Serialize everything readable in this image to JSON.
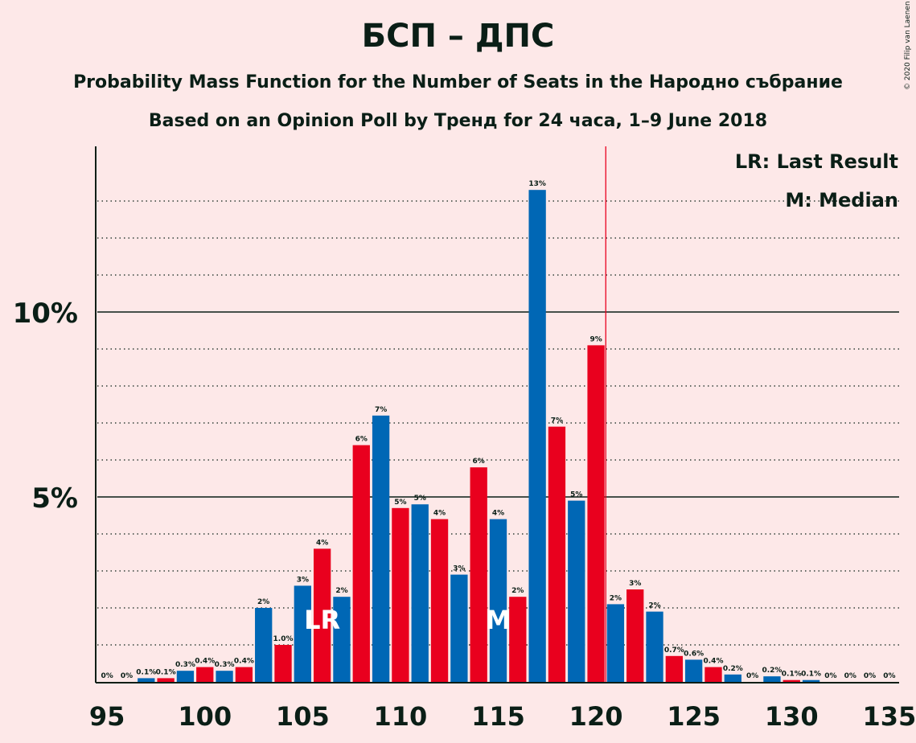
{
  "title": "БСП – ДПС",
  "subtitle": "Probability Mass Function for the Number of Seats in the Народно събрание",
  "subtitle2": "Based on an Opinion Poll by Тренд for 24 часа, 1–9 June 2018",
  "copyright": "© 2020 Filip van Laenen",
  "legend": {
    "last_result": "LR: Last Result",
    "median": "M: Median"
  },
  "colors": {
    "blue": "#0067B5",
    "red": "#E9001E",
    "background": "#FDE8E8",
    "axis": "#0A1E16"
  },
  "chart_data": {
    "type": "bar",
    "title": "БСП – ДПС",
    "xlabel": "",
    "ylabel": "",
    "x_ticks": [
      95,
      100,
      105,
      110,
      115,
      120,
      125,
      130,
      135
    ],
    "y_ticks": [
      "5%",
      "10%"
    ],
    "ylim": [
      0,
      14.5
    ],
    "majority_line": 120.5,
    "last_result": 106,
    "median": 115,
    "bars": [
      {
        "x": 95,
        "value": 0,
        "label": "0%"
      },
      {
        "x": 96,
        "value": 0,
        "label": "0%"
      },
      {
        "x": 97,
        "value": 0.1,
        "label": "0.1%"
      },
      {
        "x": 98,
        "value": 0.1,
        "label": "0.1%"
      },
      {
        "x": 99,
        "value": 0.3,
        "label": "0.3%"
      },
      {
        "x": 100,
        "value": 0.4,
        "label": "0.4%"
      },
      {
        "x": 101,
        "value": 0.3,
        "label": "0.3%"
      },
      {
        "x": 102,
        "value": 0.4,
        "label": "0.4%"
      },
      {
        "x": 103,
        "value": 2.0,
        "label": "2%"
      },
      {
        "x": 104,
        "value": 1.0,
        "label": "1.0%"
      },
      {
        "x": 105,
        "value": 2.6,
        "label": "3%"
      },
      {
        "x": 106,
        "value": 3.6,
        "label": "4%"
      },
      {
        "x": 107,
        "value": 2.3,
        "label": "2%"
      },
      {
        "x": 108,
        "value": 6.4,
        "label": "6%"
      },
      {
        "x": 109,
        "value": 7.2,
        "label": "7%"
      },
      {
        "x": 110,
        "value": 4.7,
        "label": "5%"
      },
      {
        "x": 111,
        "value": 4.8,
        "label": "5%"
      },
      {
        "x": 112,
        "value": 4.4,
        "label": "4%"
      },
      {
        "x": 113,
        "value": 2.9,
        "label": "3%"
      },
      {
        "x": 114,
        "value": 5.8,
        "label": "6%"
      },
      {
        "x": 115,
        "value": 4.4,
        "label": "4%"
      },
      {
        "x": 116,
        "value": 2.3,
        "label": "2%"
      },
      {
        "x": 117,
        "value": 13.3,
        "label": "13%"
      },
      {
        "x": 118,
        "value": 6.9,
        "label": "7%"
      },
      {
        "x": 119,
        "value": 4.9,
        "label": "5%"
      },
      {
        "x": 120,
        "value": 9.1,
        "label": "9%"
      },
      {
        "x": 121,
        "value": 2.1,
        "label": "2%"
      },
      {
        "x": 122,
        "value": 2.5,
        "label": "3%"
      },
      {
        "x": 123,
        "value": 1.9,
        "label": "2%"
      },
      {
        "x": 124,
        "value": 0.7,
        "label": "0.7%"
      },
      {
        "x": 125,
        "value": 0.6,
        "label": "0.6%"
      },
      {
        "x": 126,
        "value": 0.4,
        "label": "0.4%"
      },
      {
        "x": 127,
        "value": 0.2,
        "label": "0.2%"
      },
      {
        "x": 128,
        "value": 0,
        "label": "0%"
      },
      {
        "x": 129,
        "value": 0.15,
        "label": "0.2%"
      },
      {
        "x": 130,
        "value": 0.05,
        "label": "0.1%"
      },
      {
        "x": 131,
        "value": 0.05,
        "label": "0.1%"
      },
      {
        "x": 132,
        "value": 0,
        "label": "0%"
      },
      {
        "x": 133,
        "value": 0,
        "label": "0%"
      },
      {
        "x": 134,
        "value": 0,
        "label": "0%"
      },
      {
        "x": 135,
        "value": 0,
        "label": "0%"
      }
    ],
    "markers": [
      {
        "x": 106,
        "text": "LR"
      },
      {
        "x": 115,
        "text": "M"
      }
    ]
  }
}
